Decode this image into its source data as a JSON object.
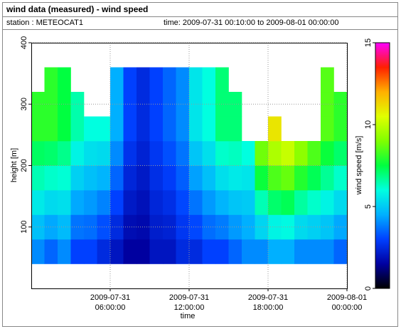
{
  "chart_data": {
    "type": "heatmap",
    "title": "wind data (measured) - wind speed",
    "station": "station : METEOCAT1",
    "period": "time: 2009-07-31 00:10:00 to 2009-08-01 00:00:00",
    "xlabel": "time",
    "ylabel": "height [m]",
    "colorbar_label": "wind speed [m/s]",
    "xbins": [
      0,
      1,
      2,
      3,
      4,
      5,
      6,
      7,
      8,
      9,
      10,
      11,
      12,
      13,
      14,
      15,
      16,
      17,
      18,
      19,
      20,
      21,
      22,
      23,
      24
    ],
    "ybins": [
      40,
      80,
      120,
      160,
      200,
      240,
      280,
      320,
      360
    ],
    "values": [
      [
        4,
        3.5,
        4,
        3,
        3,
        2.5,
        2,
        1.5,
        1.5,
        2,
        2,
        2.5,
        2.5,
        3,
        3,
        3.5,
        4,
        4,
        4.5,
        4.5,
        4,
        4,
        4,
        3.5
      ],
      [
        4.8,
        4.4,
        4.7,
        3.7,
        3.6,
        3.2,
        2.5,
        1.8,
        1.7,
        2.2,
        2.3,
        2.8,
        3.1,
        3.6,
        3.8,
        4.2,
        4.5,
        5.2,
        5.8,
        5.9,
        5.3,
        5.1,
        4.9,
        4.4
      ],
      [
        5.6,
        5.3,
        5.4,
        4.4,
        4.2,
        3.9,
        3,
        2.1,
        1.9,
        2.4,
        2.6,
        3.1,
        3.7,
        4.2,
        4.6,
        4.9,
        5,
        6.4,
        7.1,
        7.3,
        6.6,
        6.2,
        5.8,
        5.3
      ],
      [
        6.4,
        6.2,
        6.1,
        5.1,
        4.8,
        4.6,
        3.5,
        2.4,
        2.1,
        2.6,
        2.9,
        3.4,
        4.3,
        4.8,
        5.4,
        5.6,
        5.5,
        7.6,
        8.4,
        8.7,
        7.9,
        7.3,
        6.7,
        6.2
      ],
      [
        7.2,
        7.1,
        6.8,
        5.8,
        5.4,
        5.3,
        4,
        2.7,
        2.3,
        2.8,
        3.2,
        3.7,
        4.9,
        5.4,
        6.2,
        6.3,
        6,
        8.8,
        9.7,
        10.1,
        9.2,
        8.4,
        7.6,
        7.1
      ],
      [
        8,
        8,
        7.5,
        6.5,
        6,
        6,
        4.5,
        3,
        2.5,
        3,
        3.5,
        4,
        5.5,
        6,
        7,
        7,
        null,
        null,
        11,
        null,
        null,
        null,
        8.5,
        8
      ],
      [
        8,
        8,
        7.5,
        6.5,
        null,
        null,
        4.5,
        3,
        2.5,
        3,
        3.5,
        4,
        5.5,
        6,
        7,
        7,
        null,
        null,
        null,
        null,
        null,
        null,
        8.5,
        8
      ],
      [
        null,
        8,
        7.5,
        null,
        null,
        null,
        4.5,
        3,
        2.5,
        3,
        3.5,
        4,
        5.5,
        6,
        7,
        null,
        null,
        null,
        null,
        null,
        null,
        null,
        8.5,
        null
      ]
    ],
    "xlim": [
      0,
      24
    ],
    "xticks": [
      {
        "value": 6,
        "label": "2009-07-31 06:00:00"
      },
      {
        "value": 12,
        "label": "2009-07-31 12:00:00"
      },
      {
        "value": 18,
        "label": "2009-07-31 18:00:00"
      },
      {
        "value": 24,
        "label": "2009-08-01 00:00:00"
      }
    ],
    "ylim": [
      0,
      400
    ],
    "yticks": [
      100,
      200,
      300,
      400
    ],
    "zlim": [
      0,
      15
    ],
    "zticks": [
      0,
      5,
      10,
      15
    ],
    "colormap": [
      "#000000",
      "#0000a0",
      "#0040ff",
      "#00b0ff",
      "#00ffe0",
      "#00ff40",
      "#80ff00",
      "#e0ff00",
      "#ffb000",
      "#ff2000",
      "#ff00ff"
    ],
    "grid": true
  }
}
